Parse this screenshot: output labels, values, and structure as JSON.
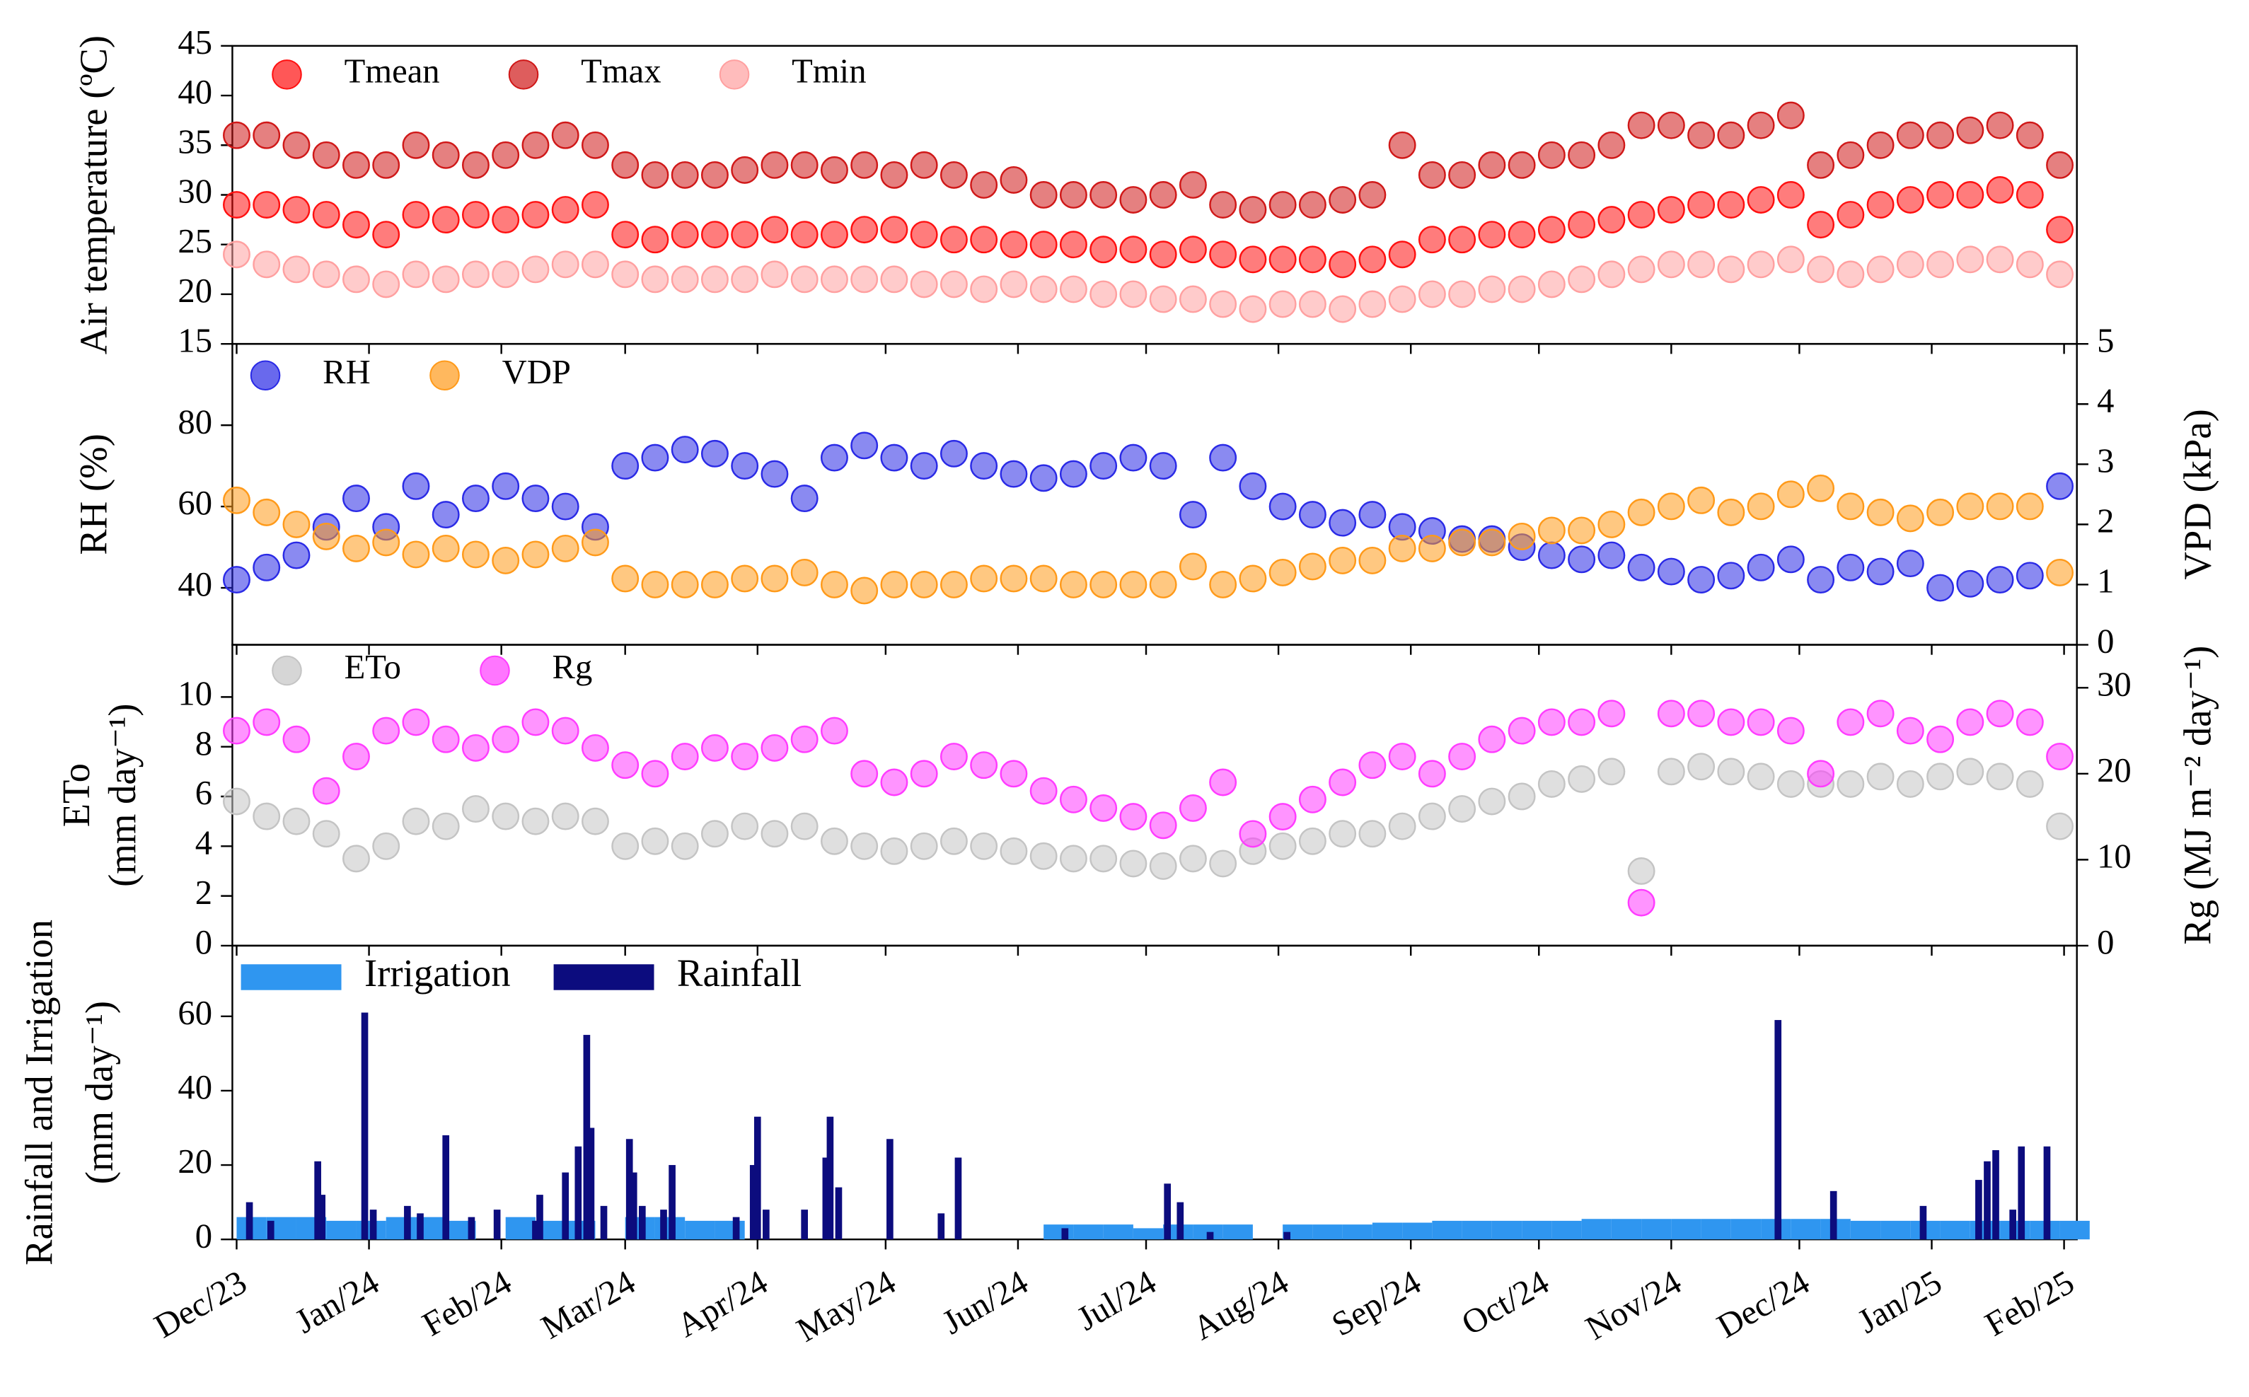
{
  "chart_data": [
    {
      "type": "scatter",
      "ylabel": [
        "Air temperature (ºC)"
      ],
      "x": [
        0,
        7,
        14,
        21,
        28,
        35,
        42,
        49,
        56,
        63,
        70,
        77,
        84,
        91,
        98,
        105,
        112,
        119,
        126,
        133,
        140,
        147,
        154,
        161,
        168,
        175,
        182,
        189,
        196,
        203,
        210,
        217,
        224,
        231,
        238,
        245,
        252,
        259,
        266,
        273,
        280,
        287,
        294,
        301,
        308,
        315,
        322,
        329,
        336,
        343,
        350,
        357,
        364,
        371,
        378,
        385,
        392,
        399,
        406,
        413,
        420,
        427
      ],
      "xlim": [
        -1,
        431
      ],
      "ylim": [
        15,
        45
      ],
      "yticks": [
        15,
        20,
        25,
        30,
        35,
        40,
        45
      ],
      "series": [
        {
          "name": "Tmean",
          "color": "#ff1010",
          "values": [
            29,
            29,
            28.5,
            28,
            27,
            26,
            28,
            27.5,
            28,
            27.5,
            28,
            28.5,
            29,
            26,
            25.5,
            26,
            26,
            26,
            26.5,
            26,
            26,
            26.5,
            26.5,
            26,
            25.5,
            25.5,
            25,
            25,
            25,
            24.5,
            24.5,
            24,
            24.5,
            24,
            23.5,
            23.5,
            23.5,
            23,
            23.5,
            24,
            25.5,
            25.5,
            26,
            26,
            26.5,
            27,
            27.5,
            28,
            28.5,
            29,
            29,
            29.5,
            30,
            27,
            28,
            29,
            29.5,
            30,
            30,
            30.5,
            30,
            26.5
          ]
        },
        {
          "name": "Tmax",
          "color": "#d01818",
          "values": [
            36,
            36,
            35,
            34,
            33,
            33,
            35,
            34,
            33,
            34,
            35,
            36,
            35,
            33,
            32,
            32,
            32,
            32.5,
            33,
            33,
            32.5,
            33,
            32,
            33,
            32,
            31,
            31.5,
            30,
            30,
            30,
            29.5,
            30,
            31,
            29,
            28.5,
            29,
            29,
            29.5,
            30,
            35,
            32,
            32,
            33,
            33,
            34,
            34,
            35,
            37,
            37,
            36,
            36,
            37,
            38,
            33,
            34,
            35,
            36,
            36,
            36.5,
            37,
            36,
            33
          ]
        },
        {
          "name": "Tmin",
          "color": "#ffa0a0",
          "values": [
            24,
            23,
            22.5,
            22,
            21.5,
            21,
            22,
            21.5,
            22,
            22,
            22.5,
            23,
            23,
            22,
            21.5,
            21.5,
            21.5,
            21.5,
            22,
            21.5,
            21.5,
            21.5,
            21.5,
            21,
            21,
            20.5,
            21,
            20.5,
            20.5,
            20,
            20,
            19.5,
            19.5,
            19,
            18.5,
            19,
            19,
            18.5,
            19,
            19.5,
            20,
            20,
            20.5,
            20.5,
            21,
            21.5,
            22,
            22.5,
            23,
            23,
            22.5,
            23,
            23.5,
            22.5,
            22,
            22.5,
            23,
            23,
            23.5,
            23.5,
            23,
            22
          ]
        }
      ]
    },
    {
      "type": "scatter",
      "ylabel": [
        "RH (%)"
      ],
      "y2label": [
        "VPD (kPa)"
      ],
      "x": [
        0,
        7,
        14,
        21,
        28,
        35,
        42,
        49,
        56,
        63,
        70,
        77,
        84,
        91,
        98,
        105,
        112,
        119,
        126,
        133,
        140,
        147,
        154,
        161,
        168,
        175,
        182,
        189,
        196,
        203,
        210,
        217,
        224,
        231,
        238,
        245,
        252,
        259,
        266,
        273,
        280,
        287,
        294,
        301,
        308,
        315,
        322,
        329,
        336,
        343,
        350,
        357,
        364,
        371,
        378,
        385,
        392,
        399,
        406,
        413,
        420,
        427
      ],
      "xlim": [
        -1,
        431
      ],
      "ylim": [
        26,
        100
      ],
      "yticks": [
        40,
        60,
        80
      ],
      "y2lim": [
        0,
        5
      ],
      "y2ticks": [
        0,
        1,
        2,
        3,
        4,
        5
      ],
      "series": [
        {
          "name": "RH",
          "color": "#2a2ae6",
          "values": [
            42,
            45,
            48,
            55,
            62,
            55,
            65,
            58,
            62,
            65,
            62,
            60,
            55,
            70,
            72,
            74,
            73,
            70,
            68,
            62,
            72,
            75,
            72,
            70,
            73,
            70,
            68,
            67,
            68,
            70,
            72,
            70,
            58,
            72,
            65,
            60,
            58,
            56,
            58,
            55,
            54,
            52,
            52,
            50,
            48,
            47,
            48,
            45,
            44,
            42,
            43,
            45,
            47,
            42,
            45,
            44,
            46,
            40,
            41,
            42,
            43,
            65
          ]
        },
        {
          "name": "VDP",
          "color": "#ff9a1a",
          "axis": "y2",
          "values": [
            2.4,
            2.2,
            2.0,
            1.8,
            1.6,
            1.7,
            1.5,
            1.6,
            1.5,
            1.4,
            1.5,
            1.6,
            1.7,
            1.1,
            1.0,
            1.0,
            1.0,
            1.1,
            1.1,
            1.2,
            1.0,
            0.9,
            1.0,
            1.0,
            1.0,
            1.1,
            1.1,
            1.1,
            1.0,
            1.0,
            1.0,
            1.0,
            1.3,
            1.0,
            1.1,
            1.2,
            1.3,
            1.4,
            1.4,
            1.6,
            1.6,
            1.7,
            1.7,
            1.8,
            1.9,
            1.9,
            2.0,
            2.2,
            2.3,
            2.4,
            2.2,
            2.3,
            2.5,
            2.6,
            2.3,
            2.2,
            2.1,
            2.2,
            2.3,
            2.3,
            2.3,
            1.2
          ]
        }
      ]
    },
    {
      "type": "scatter",
      "ylabel": [
        "ETo",
        "(mm day⁻¹)"
      ],
      "y2label": [
        "Rg (MJ m⁻² day⁻¹)"
      ],
      "x": [
        0,
        7,
        14,
        21,
        28,
        35,
        42,
        49,
        56,
        63,
        70,
        77,
        84,
        91,
        98,
        105,
        112,
        119,
        126,
        133,
        140,
        147,
        154,
        161,
        168,
        175,
        182,
        189,
        196,
        203,
        210,
        217,
        224,
        231,
        238,
        245,
        252,
        259,
        266,
        273,
        280,
        287,
        294,
        301,
        308,
        315,
        322,
        329,
        336,
        343,
        350,
        357,
        364,
        371,
        378,
        385,
        392,
        399,
        406,
        413,
        420,
        427
      ],
      "xlim": [
        -1,
        431
      ],
      "ylim": [
        0,
        12.1
      ],
      "yticks": [
        0,
        2,
        4,
        6,
        8,
        10
      ],
      "y2lim": [
        0,
        35
      ],
      "y2ticks": [
        0,
        10,
        20,
        30
      ],
      "series": [
        {
          "name": "ETo",
          "color": "#c4c4c4",
          "values": [
            5.8,
            5.2,
            5.0,
            4.5,
            3.5,
            4.0,
            5.0,
            4.8,
            5.5,
            5.2,
            5.0,
            5.2,
            5.0,
            4.0,
            4.2,
            4.0,
            4.5,
            4.8,
            4.5,
            4.8,
            4.2,
            4.0,
            3.8,
            4.0,
            4.2,
            4.0,
            3.8,
            3.6,
            3.5,
            3.5,
            3.3,
            3.2,
            3.5,
            3.3,
            3.8,
            4.0,
            4.2,
            4.5,
            4.5,
            4.8,
            5.2,
            5.5,
            5.8,
            6.0,
            6.5,
            6.7,
            7.0,
            3.0,
            7.0,
            7.2,
            7.0,
            6.8,
            6.5,
            6.5,
            6.5,
            6.8,
            6.5,
            6.8,
            7.0,
            6.8,
            6.5,
            4.8
          ]
        },
        {
          "name": "Rg",
          "color": "#ff3cff",
          "axis": "y2",
          "values": [
            25,
            26,
            24,
            18,
            22,
            25,
            26,
            24,
            23,
            24,
            26,
            25,
            23,
            21,
            20,
            22,
            23,
            22,
            23,
            24,
            25,
            20,
            19,
            20,
            22,
            21,
            20,
            18,
            17,
            16,
            15,
            14,
            16,
            19,
            13,
            15,
            17,
            19,
            21,
            22,
            20,
            22,
            24,
            25,
            26,
            26,
            27,
            5,
            27,
            27,
            26,
            26,
            25,
            20,
            26,
            27,
            25,
            24,
            26,
            27,
            26,
            22
          ]
        }
      ]
    },
    {
      "type": "bar",
      "ylabel": [
        "Rainfall and Irrigation",
        "(mm day⁻¹)"
      ],
      "xlim": [
        -1,
        431
      ],
      "xticks": [
        {
          "value": 0,
          "label": "Dec/23"
        },
        {
          "value": 31,
          "label": "Jan/24"
        },
        {
          "value": 62,
          "label": "Feb/24"
        },
        {
          "value": 91,
          "label": "Mar/24"
        },
        {
          "value": 122,
          "label": "Apr/24"
        },
        {
          "value": 152,
          "label": "May/24"
        },
        {
          "value": 183,
          "label": "Jun/24"
        },
        {
          "value": 213,
          "label": "Jul/24"
        },
        {
          "value": 244,
          "label": "Aug/24"
        },
        {
          "value": 275,
          "label": "Sep/24"
        },
        {
          "value": 305,
          "label": "Oct/24"
        },
        {
          "value": 336,
          "label": "Nov/24"
        },
        {
          "value": 366,
          "label": "Dec/24"
        },
        {
          "value": 397,
          "label": "Jan/25"
        },
        {
          "value": 428,
          "label": "Feb/25"
        }
      ],
      "ylim": [
        0,
        79
      ],
      "yticks": [
        0,
        20,
        40,
        60
      ],
      "series": [
        {
          "name": "Irrigation",
          "color": "#2f96f0",
          "x": [
            0,
            7,
            14,
            21,
            28,
            35,
            42,
            49,
            56,
            63,
            70,
            77,
            84,
            91,
            98,
            105,
            112,
            119,
            126,
            133,
            140,
            147,
            154,
            161,
            168,
            175,
            182,
            189,
            196,
            203,
            210,
            217,
            224,
            231,
            238,
            245,
            252,
            259,
            266,
            273,
            280,
            287,
            294,
            301,
            308,
            315,
            322,
            329,
            336,
            343,
            350,
            357,
            364,
            371,
            378,
            385,
            392,
            399,
            406,
            413,
            420,
            427
          ],
          "values": [
            6,
            6,
            6,
            5,
            5,
            6,
            6,
            5,
            0,
            6,
            5,
            5,
            0,
            6,
            6,
            5,
            5,
            0,
            0,
            0,
            0,
            0,
            0,
            0,
            0,
            0,
            0,
            4,
            4,
            4,
            3,
            4,
            4,
            4,
            0,
            4,
            4,
            4,
            4.5,
            4.5,
            5,
            5,
            5,
            5,
            5,
            5.5,
            5.5,
            5.5,
            5.5,
            5.5,
            5.5,
            5.5,
            5.5,
            5.5,
            5,
            5,
            5,
            5,
            5,
            5,
            5,
            5
          ]
        },
        {
          "name": "Rainfall",
          "color": "#0c0c7e",
          "x": [
            3,
            8,
            19,
            20,
            30,
            32,
            40,
            43,
            49,
            55,
            61,
            70,
            71,
            77,
            80,
            82,
            83,
            86,
            92,
            93,
            95,
            100,
            102,
            117,
            121,
            122,
            124,
            133,
            138,
            139,
            141,
            153,
            165,
            169,
            194,
            218,
            221,
            228,
            246,
            361,
            374,
            395,
            408,
            410,
            412,
            416,
            418,
            424
          ],
          "values": [
            10,
            5,
            21,
            12,
            61,
            8,
            9,
            7,
            28,
            6,
            8,
            5,
            12,
            18,
            25,
            55,
            30,
            9,
            27,
            18,
            9,
            8,
            20,
            6,
            20,
            33,
            8,
            8,
            22,
            33,
            14,
            27,
            7,
            22,
            3,
            15,
            10,
            2,
            2,
            59,
            13,
            9,
            16,
            21,
            24,
            8,
            25,
            25
          ]
        }
      ]
    }
  ]
}
